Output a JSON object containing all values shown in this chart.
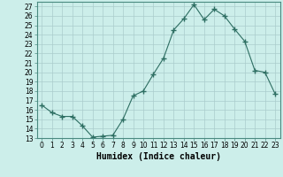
{
  "x": [
    0,
    1,
    2,
    3,
    4,
    5,
    6,
    7,
    8,
    9,
    10,
    11,
    12,
    13,
    14,
    15,
    16,
    17,
    18,
    19,
    20,
    21,
    22,
    23
  ],
  "y": [
    16.5,
    15.7,
    15.3,
    15.3,
    14.3,
    13.1,
    13.2,
    13.3,
    15.0,
    17.5,
    18.0,
    19.8,
    21.5,
    24.5,
    25.7,
    27.2,
    25.6,
    26.7,
    26.0,
    24.6,
    23.3,
    20.2,
    20.0,
    17.7
  ],
  "xlabel": "Humidex (Indice chaleur)",
  "line_color": "#2d6e62",
  "marker": "+",
  "marker_size": 4,
  "bg_color": "#cceeea",
  "grid_color": "#aacccc",
  "ylim": [
    13,
    27.5
  ],
  "yticks": [
    13,
    14,
    15,
    16,
    17,
    18,
    19,
    20,
    21,
    22,
    23,
    24,
    25,
    26,
    27
  ],
  "xticks": [
    0,
    1,
    2,
    3,
    4,
    5,
    6,
    7,
    8,
    9,
    10,
    11,
    12,
    13,
    14,
    15,
    16,
    17,
    18,
    19,
    20,
    21,
    22,
    23
  ],
  "tick_fontsize": 5.5,
  "xlabel_fontsize": 7
}
